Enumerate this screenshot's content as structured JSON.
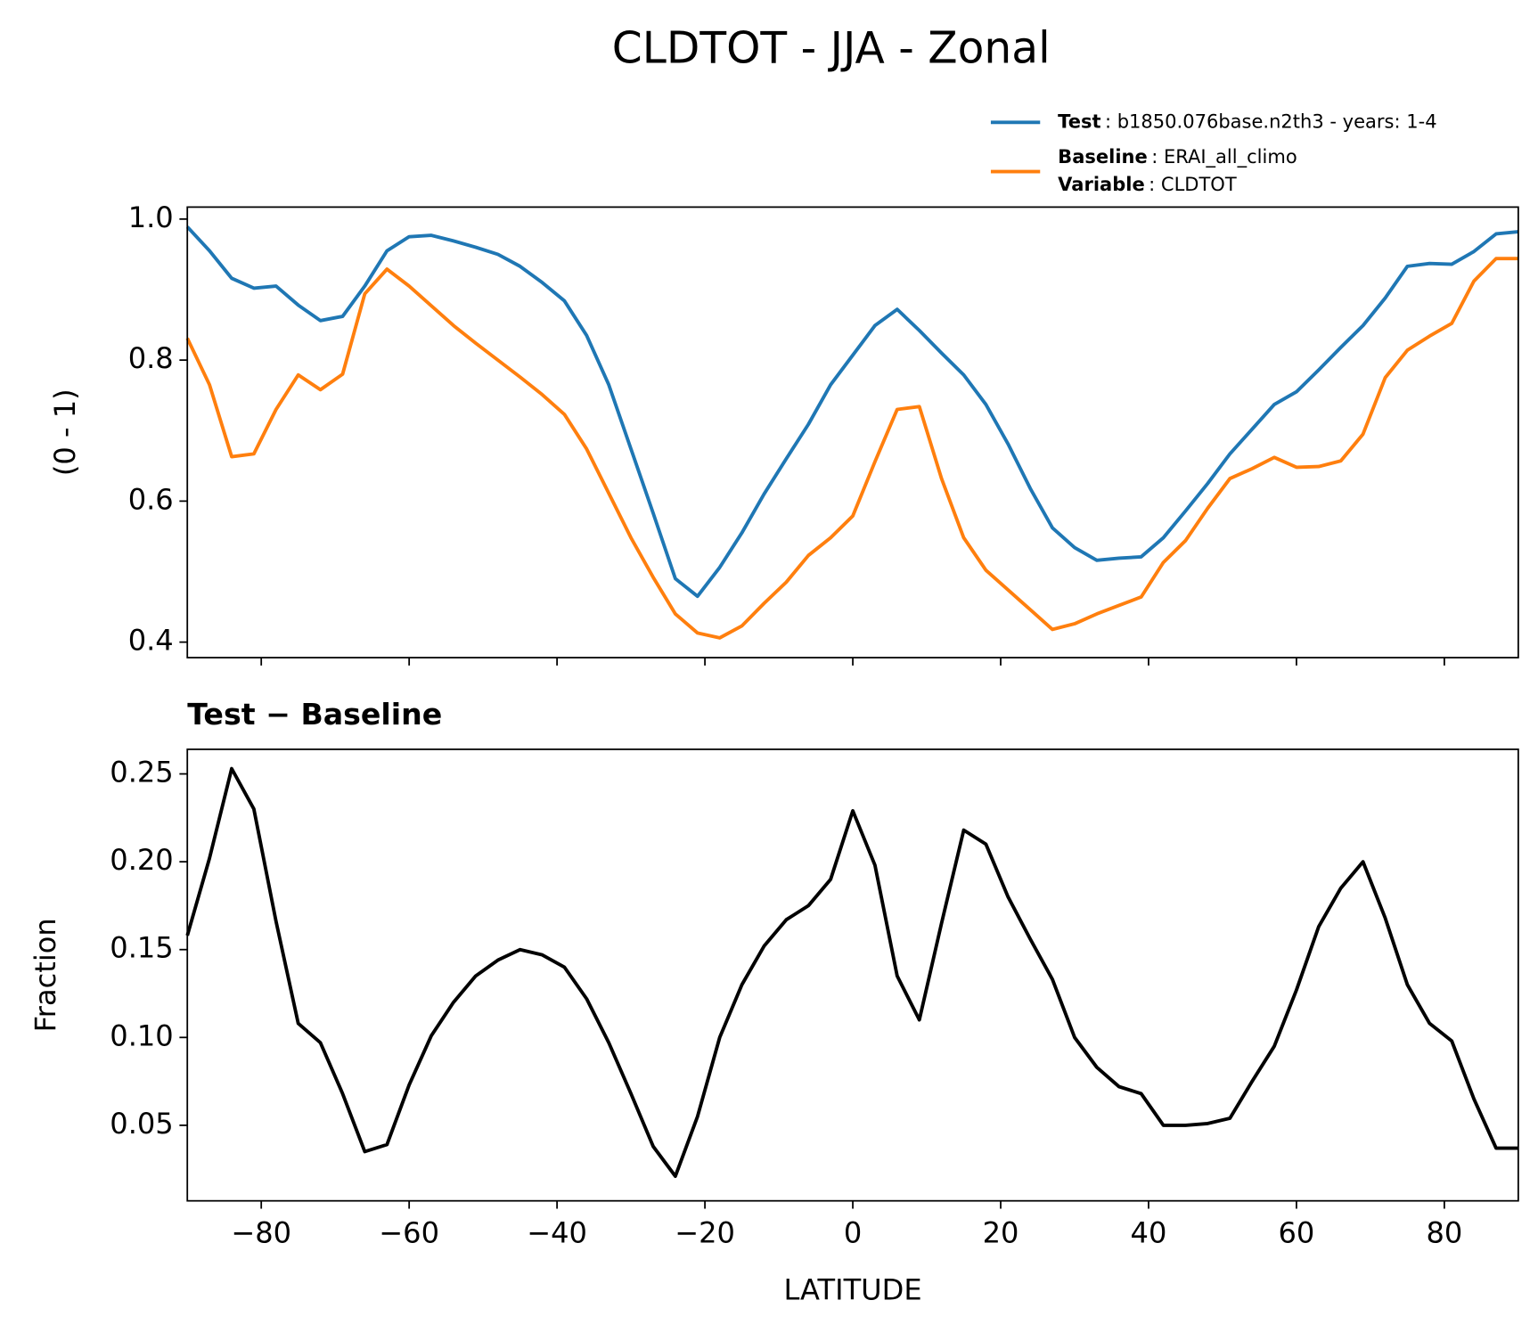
{
  "title": "CLDTOT - JJA - Zonal",
  "chart_data": [
    {
      "type": "line",
      "ylabel": "(0 - 1)",
      "legend": true,
      "show_xtick_labels": false,
      "variable_label": "Variable",
      "variable": ": CLDTOT",
      "xlim": [
        -90,
        90
      ],
      "ylim": [
        0.378,
        1.017
      ],
      "xticks": [
        {
          "value": -80,
          "label": "−80"
        },
        {
          "value": -60,
          "label": "−60"
        },
        {
          "value": -40,
          "label": "−40"
        },
        {
          "value": -20,
          "label": "−20"
        },
        0,
        20,
        40,
        60,
        80
      ],
      "yticks": [
        0.4,
        0.6,
        0.8,
        {
          "value": 1,
          "label": "1.0"
        }
      ],
      "x": [
        -90,
        -87,
        -84,
        -81,
        -78,
        -75,
        -72,
        -69,
        -66,
        -63,
        -60,
        -57,
        -54,
        -51,
        -48,
        -45,
        -42,
        -39,
        -36,
        -33,
        -30,
        -27,
        -24,
        -21,
        -18,
        -15,
        -12,
        -9,
        -6,
        -3,
        0,
        3,
        6,
        9,
        12,
        15,
        18,
        21,
        24,
        27,
        30,
        33,
        36,
        39,
        42,
        45,
        48,
        51,
        54,
        57,
        60,
        63,
        66,
        69,
        72,
        75,
        78,
        81,
        84,
        87,
        90
      ],
      "series": [
        {
          "name": "Test",
          "legend_text": ": b1850.076base.n2th3 - years: 1-4",
          "color": "#1f77b4",
          "values": [
            0.989,
            0.955,
            0.916,
            0.902,
            0.905,
            0.878,
            0.856,
            0.862,
            0.905,
            0.955,
            0.975,
            0.977,
            0.969,
            0.96,
            0.95,
            0.933,
            0.91,
            0.884,
            0.835,
            0.765,
            0.674,
            0.583,
            0.49,
            0.465,
            0.506,
            0.555,
            0.61,
            0.66,
            0.709,
            0.765,
            0.807,
            0.849,
            0.872,
            0.842,
            0.81,
            0.779,
            0.737,
            0.681,
            0.618,
            0.562,
            0.534,
            0.516,
            0.519,
            0.521,
            0.548,
            0.586,
            0.625,
            0.667,
            0.702,
            0.737,
            0.755,
            0.786,
            0.818,
            0.849,
            0.888,
            0.933,
            0.937,
            0.936,
            0.954,
            0.979,
            0.982
          ]
        },
        {
          "name": "Baseline",
          "legend_text": ": ERAI_all_climo",
          "color": "#ff7f0e",
          "values": [
            0.831,
            0.765,
            0.663,
            0.667,
            0.73,
            0.779,
            0.758,
            0.78,
            0.894,
            0.929,
            0.905,
            0.877,
            0.849,
            0.824,
            0.8,
            0.776,
            0.751,
            0.723,
            0.674,
            0.611,
            0.548,
            0.492,
            0.44,
            0.413,
            0.406,
            0.423,
            0.455,
            0.485,
            0.523,
            0.548,
            0.579,
            0.656,
            0.73,
            0.734,
            0.632,
            0.548,
            0.502,
            0.474,
            0.446,
            0.418,
            0.426,
            0.44,
            0.452,
            0.464,
            0.513,
            0.544,
            0.59,
            0.632,
            0.646,
            0.662,
            0.648,
            0.649,
            0.657,
            0.695,
            0.775,
            0.814,
            0.834,
            0.852,
            0.912,
            0.944,
            0.944
          ]
        }
      ]
    },
    {
      "type": "line",
      "title": "Test − Baseline",
      "ylabel": "Fraction",
      "xlabel": "LATITUDE",
      "show_xtick_labels": true,
      "xlim": [
        -90,
        90
      ],
      "ylim": [
        0.007,
        0.264
      ],
      "xticks": [
        {
          "value": -80,
          "label": "−80"
        },
        {
          "value": -60,
          "label": "−60"
        },
        {
          "value": -40,
          "label": "−40"
        },
        {
          "value": -20,
          "label": "−20"
        },
        0,
        20,
        40,
        60,
        80
      ],
      "yticks": [
        0.05,
        {
          "value": 0.1,
          "label": "0.10"
        },
        0.15,
        {
          "value": 0.2,
          "label": "0.20"
        },
        0.25
      ],
      "x": [
        -90,
        -87,
        -84,
        -81,
        -78,
        -75,
        -72,
        -69,
        -66,
        -63,
        -60,
        -57,
        -54,
        -51,
        -48,
        -45,
        -42,
        -39,
        -36,
        -33,
        -30,
        -27,
        -24,
        -21,
        -18,
        -15,
        -12,
        -9,
        -6,
        -3,
        0,
        3,
        6,
        9,
        12,
        15,
        18,
        21,
        24,
        27,
        30,
        33,
        36,
        39,
        42,
        45,
        48,
        51,
        54,
        57,
        60,
        63,
        66,
        69,
        72,
        75,
        78,
        81,
        84,
        87,
        90
      ],
      "series": [
        {
          "color": "#000000",
          "values": [
            0.158,
            0.202,
            0.253,
            0.23,
            0.166,
            0.108,
            0.097,
            0.068,
            0.035,
            0.039,
            0.073,
            0.101,
            0.12,
            0.135,
            0.144,
            0.15,
            0.147,
            0.14,
            0.122,
            0.097,
            0.068,
            0.038,
            0.021,
            0.055,
            0.1,
            0.13,
            0.152,
            0.167,
            0.175,
            0.19,
            0.229,
            0.198,
            0.135,
            0.11,
            0.165,
            0.218,
            0.21,
            0.18,
            0.156,
            0.133,
            0.1,
            0.083,
            0.072,
            0.068,
            0.05,
            0.05,
            0.051,
            0.054,
            0.075,
            0.095,
            0.127,
            0.163,
            0.185,
            0.2,
            0.168,
            0.13,
            0.108,
            0.098,
            0.065,
            0.037,
            0.037
          ]
        }
      ]
    }
  ]
}
